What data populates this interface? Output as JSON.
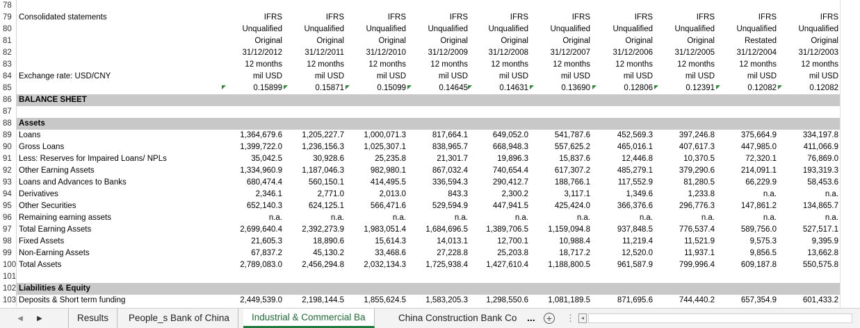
{
  "sheet": {
    "label_rows": [
      {
        "num": "78",
        "label": ""
      },
      {
        "num": "79",
        "label": "Consolidated statements"
      },
      {
        "num": "80",
        "label": ""
      },
      {
        "num": "81",
        "label": ""
      },
      {
        "num": "82",
        "label": ""
      },
      {
        "num": "83",
        "label": ""
      },
      {
        "num": "84",
        "label": "Exchange rate: USD/CNY"
      },
      {
        "num": "85",
        "label": ""
      }
    ],
    "header_cols": [
      [
        "IFRS",
        "Unqualified",
        "Original",
        "31/12/2012",
        "12 months",
        "mil USD",
        "0.15899"
      ],
      [
        "IFRS",
        "Unqualified",
        "Original",
        "31/12/2011",
        "12 months",
        "mil USD",
        "0.15871"
      ],
      [
        "IFRS",
        "Unqualified",
        "Original",
        "31/12/2010",
        "12 months",
        "mil USD",
        "0.15099"
      ],
      [
        "IFRS",
        "Unqualified",
        "Original",
        "31/12/2009",
        "12 months",
        "mil USD",
        "0.14645"
      ],
      [
        "IFRS",
        "Unqualified",
        "Original",
        "31/12/2008",
        "12 months",
        "mil USD",
        "0.14631"
      ],
      [
        "IFRS",
        "Unqualified",
        "Original",
        "31/12/2007",
        "12 months",
        "mil USD",
        "0.13690"
      ],
      [
        "IFRS",
        "Unqualified",
        "Original",
        "31/12/2006",
        "12 months",
        "mil USD",
        "0.12806"
      ],
      [
        "IFRS",
        "Unqualified",
        "Original",
        "31/12/2005",
        "12 months",
        "mil USD",
        "0.12391"
      ],
      [
        "IFRS",
        "Unqualified",
        "Restated",
        "31/12/2004",
        "12 months",
        "mil USD",
        "0.12082"
      ],
      [
        "IFRS",
        "Unqualified",
        "Original",
        "31/12/2003",
        "12 months",
        "mil USD",
        "0.12082"
      ]
    ],
    "section_balance": {
      "num": "86",
      "label": "BALANCE SHEET"
    },
    "row87": {
      "num": "87"
    },
    "section_assets": {
      "num": "88",
      "label": "Assets"
    },
    "data_rows": [
      {
        "num": "89",
        "label": "Loans",
        "values": [
          "1,364,679.6",
          "1,205,227.7",
          "1,000,071.3",
          "817,664.1",
          "649,052.0",
          "541,787.6",
          "452,569.3",
          "397,246.8",
          "375,664.9",
          "334,197.8"
        ]
      },
      {
        "num": "90",
        "label": "Gross Loans",
        "values": [
          "1,399,722.0",
          "1,236,156.3",
          "1,025,307.1",
          "838,965.7",
          "668,948.3",
          "557,625.2",
          "465,016.1",
          "407,617.3",
          "447,985.0",
          "411,066.9"
        ]
      },
      {
        "num": "91",
        "label": "Less: Reserves for Impaired Loans/ NPLs",
        "values": [
          "35,042.5",
          "30,928.6",
          "25,235.8",
          "21,301.7",
          "19,896.3",
          "15,837.6",
          "12,446.8",
          "10,370.5",
          "72,320.1",
          "76,869.0"
        ]
      },
      {
        "num": "92",
        "label": "Other Earning Assets",
        "values": [
          "1,334,960.9",
          "1,187,046.3",
          "982,980.1",
          "867,032.4",
          "740,654.4",
          "617,307.2",
          "485,279.1",
          "379,290.6",
          "214,091.1",
          "193,319.3"
        ]
      },
      {
        "num": "93",
        "label": "Loans and Advances to Banks",
        "values": [
          "680,474.4",
          "560,150.1",
          "414,495.5",
          "336,594.3",
          "290,412.7",
          "188,766.1",
          "117,552.9",
          "81,280.5",
          "66,229.9",
          "58,453.6"
        ]
      },
      {
        "num": "94",
        "label": "Derivatives",
        "values": [
          "2,346.1",
          "2,771.0",
          "2,013.0",
          "843.3",
          "2,300.2",
          "3,117.1",
          "1,349.6",
          "1,233.8",
          "n.a.",
          "n.a."
        ]
      },
      {
        "num": "95",
        "label": "Other Securities",
        "values": [
          "652,140.3",
          "624,125.1",
          "566,471.6",
          "529,594.9",
          "447,941.5",
          "425,424.0",
          "366,376.6",
          "296,776.3",
          "147,861.2",
          "134,865.7"
        ]
      },
      {
        "num": "96",
        "label": "Remaining earning assets",
        "values": [
          "n.a.",
          "n.a.",
          "n.a.",
          "n.a.",
          "n.a.",
          "n.a.",
          "n.a.",
          "n.a.",
          "n.a.",
          "n.a."
        ]
      },
      {
        "num": "97",
        "label": "Total Earning Assets",
        "values": [
          "2,699,640.4",
          "2,392,273.9",
          "1,983,051.4",
          "1,684,696.5",
          "1,389,706.5",
          "1,159,094.8",
          "937,848.5",
          "776,537.4",
          "589,756.0",
          "527,517.1"
        ]
      },
      {
        "num": "98",
        "label": "Fixed Assets",
        "values": [
          "21,605.3",
          "18,890.6",
          "15,614.3",
          "14,013.1",
          "12,700.1",
          "10,988.4",
          "11,219.4",
          "11,521.9",
          "9,575.3",
          "9,395.9"
        ]
      },
      {
        "num": "99",
        "label": "Non-Earning Assets",
        "values": [
          "67,837.2",
          "45,130.2",
          "33,468.6",
          "27,228.8",
          "25,203.8",
          "18,717.2",
          "12,520.0",
          "11,937.1",
          "9,856.5",
          "13,662.8"
        ]
      },
      {
        "num": "100",
        "label": "Total Assets",
        "values": [
          "2,789,083.0",
          "2,456,294.8",
          "2,032,134.3",
          "1,725,938.4",
          "1,427,610.4",
          "1,188,800.5",
          "961,587.9",
          "799,996.4",
          "609,187.8",
          "550,575.8"
        ]
      }
    ],
    "row101": {
      "num": "101"
    },
    "section_liab": {
      "num": "102",
      "label": "Liabilities & Equity"
    },
    "row103": {
      "num": "103",
      "label": "Deposits & Short term funding",
      "values": [
        "2,449,539.0",
        "2,198,144.5",
        "1,855,624.5",
        "1,583,205.3",
        "1,298,550.6",
        "1,081,189.5",
        "871,695.6",
        "744,440.2",
        "657,354.9",
        "601,433.2"
      ]
    }
  },
  "tabs": {
    "items": [
      "Results",
      "People_s Bank of China",
      "Industrial & Commercial Ba",
      "China Construction Bank Co"
    ],
    "active_index": 2,
    "overflow": "...",
    "add_label": "+",
    "more_label": "⋮"
  },
  "colors": {
    "band": "#c8c8c8",
    "accent": "#1e7a3c",
    "error_triangle": "#2e8b3a"
  },
  "icons": [
    "scroll-left-icon",
    "scroll-right-icon",
    "add-sheet-icon"
  ]
}
